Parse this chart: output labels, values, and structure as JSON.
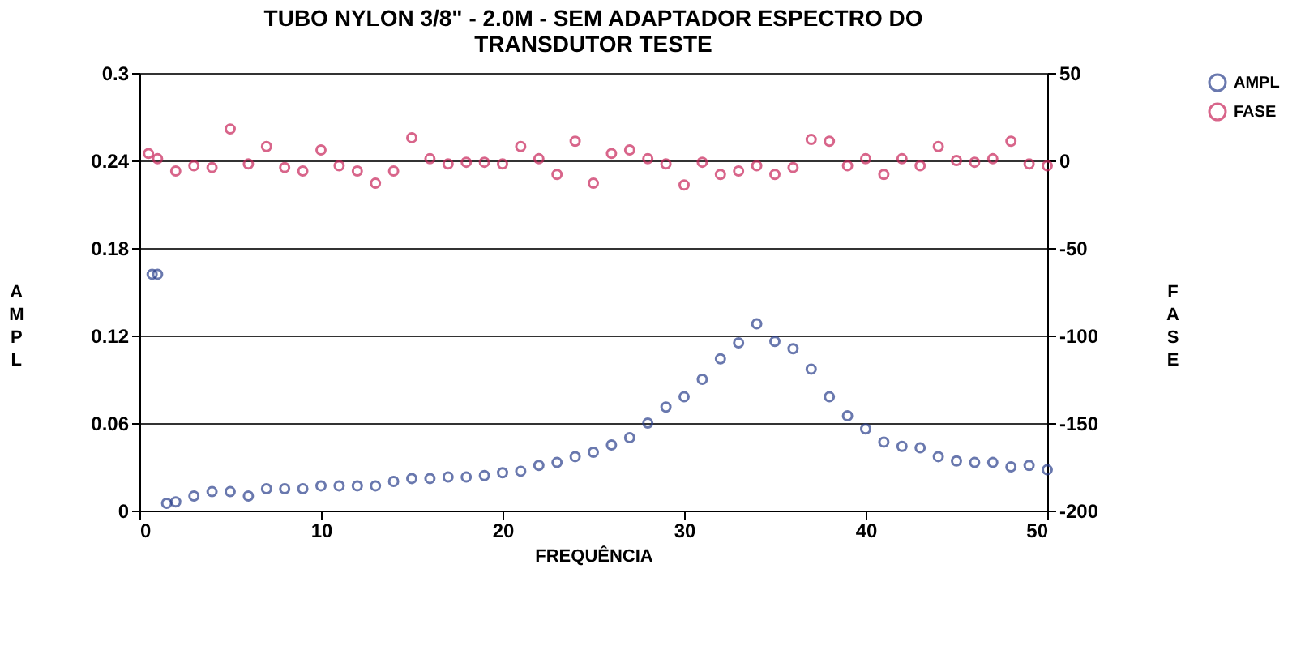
{
  "chart_data": {
    "type": "scatter",
    "title": "TUBO NYLON 3/8\" - 2.0M - SEM ADAPTADOR ESPECTRO DO\nTRANSDUTOR TESTE",
    "xlabel": "FREQUÊNCIA",
    "ylabel": "AMPL",
    "y2label": "FASE",
    "xlim": [
      0,
      50
    ],
    "xticks": [
      0,
      10,
      20,
      30,
      40,
      50
    ],
    "ylim": [
      0,
      0.3
    ],
    "yticks": [
      0,
      0.06,
      0.12,
      0.18,
      0.24,
      0.3
    ],
    "y2lim": [
      -200,
      50
    ],
    "y2ticks": [
      -200,
      -150,
      -100,
      -50,
      0,
      50
    ],
    "grid": "y",
    "legend": "right",
    "marker": "circle",
    "series": [
      {
        "name": "AMPL",
        "color": "#2b3f8c",
        "x": [
          0.7,
          1,
          1.5,
          2,
          3,
          4,
          5,
          6,
          7,
          8,
          9,
          10,
          11,
          12,
          13,
          14,
          15,
          16,
          17,
          18,
          19,
          20,
          21,
          22,
          23,
          24,
          25,
          26,
          27,
          28,
          29,
          30,
          31,
          32,
          33,
          34,
          35,
          36,
          37,
          38,
          39,
          40,
          41,
          42,
          43,
          44,
          45,
          46,
          47,
          48,
          49,
          50
        ],
        "values": [
          0.162,
          0.162,
          0.005,
          0.006,
          0.01,
          0.013,
          0.013,
          0.01,
          0.015,
          0.015,
          0.015,
          0.017,
          0.017,
          0.017,
          0.017,
          0.02,
          0.022,
          0.022,
          0.023,
          0.023,
          0.024,
          0.026,
          0.027,
          0.031,
          0.033,
          0.037,
          0.04,
          0.045,
          0.05,
          0.06,
          0.071,
          0.078,
          0.09,
          0.104,
          0.115,
          0.128,
          0.116,
          0.111,
          0.097,
          0.078,
          0.065,
          0.056,
          0.047,
          0.044,
          0.043,
          0.037,
          0.034,
          0.033,
          0.033,
          0.03,
          0.031,
          0.028
        ]
      },
      {
        "name": "FASE",
        "color": "#c8245a",
        "axis": "y2",
        "x": [
          0.5,
          1,
          2,
          3,
          4,
          5,
          6,
          7,
          8,
          9,
          10,
          11,
          12,
          13,
          14,
          15,
          16,
          17,
          18,
          19,
          20,
          21,
          22,
          23,
          24,
          25,
          26,
          27,
          28,
          29,
          30,
          31,
          32,
          33,
          34,
          35,
          36,
          37,
          38,
          39,
          40,
          41,
          42,
          43,
          44,
          45,
          46,
          47,
          48,
          49,
          50
        ],
        "values": [
          4,
          1,
          -6,
          -3,
          -4,
          18,
          -2,
          8,
          -4,
          -6,
          6,
          -3,
          -6,
          -13,
          -6,
          13,
          1,
          -2,
          -1,
          -1,
          -2,
          8,
          1,
          -8,
          11,
          -13,
          4,
          6,
          1,
          -2,
          -14,
          -1,
          -8,
          -6,
          -3,
          -8,
          -4,
          12,
          11,
          -3,
          1,
          -8,
          1,
          -3,
          8,
          0,
          -1,
          1,
          11,
          -2,
          -3
        ]
      }
    ]
  }
}
